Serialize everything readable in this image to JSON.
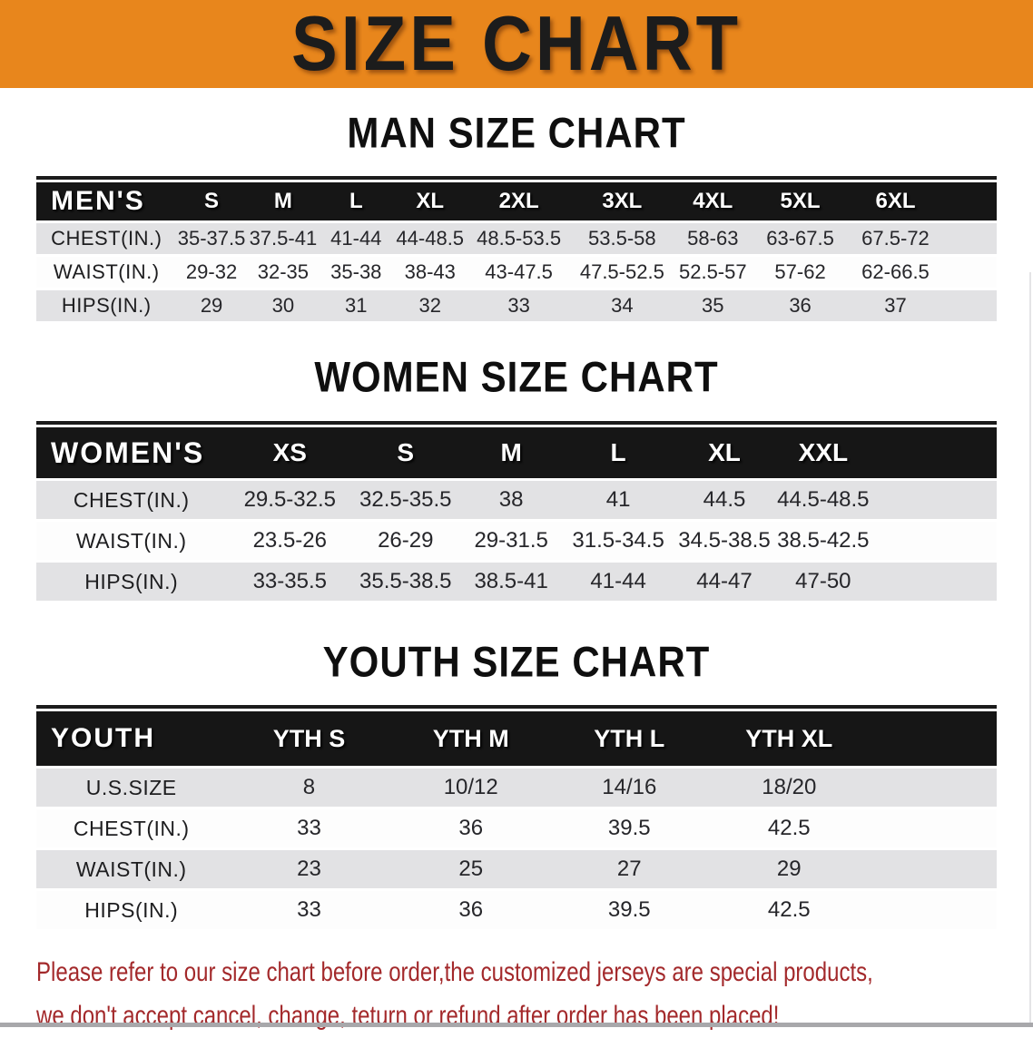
{
  "banner": {
    "title": "SIZE CHART"
  },
  "colors": {
    "banner_orange": "#E8861C",
    "header_black": "#161616",
    "row_gray": "#E2E2E4",
    "footer_red": "#A3292B"
  },
  "sections": [
    {
      "heading": "MAN SIZE CHART",
      "table": {
        "corner": "MEN'S",
        "sizes": [
          "S",
          "M",
          "L",
          "XL",
          "2XL",
          "3XL",
          "4XL",
          "5XL",
          "6XL"
        ],
        "rows": [
          {
            "label": "CHEST(IN.)",
            "values": [
              "35-37.5",
              "37.5-41",
              "41-44",
              "44-48.5",
              "48.5-53.5",
              "53.5-58",
              "58-63",
              "63-67.5",
              "67.5-72"
            ]
          },
          {
            "label": "WAIST(IN.)",
            "values": [
              "29-32",
              "32-35",
              "35-38",
              "38-43",
              "43-47.5",
              "47.5-52.5",
              "52.5-57",
              "57-62",
              "62-66.5"
            ]
          },
          {
            "label": "HIPS(IN.)",
            "values": [
              "29",
              "30",
              "31",
              "32",
              "33",
              "34",
              "35",
              "36",
              "37"
            ]
          }
        ]
      }
    },
    {
      "heading": "WOMEN SIZE CHART",
      "table": {
        "corner": "WOMEN'S",
        "sizes": [
          "XS",
          "S",
          "M",
          "L",
          "XL",
          "XXL"
        ],
        "rows": [
          {
            "label": "CHEST(IN.)",
            "values": [
              "29.5-32.5",
              "32.5-35.5",
              "38",
              "41",
              "44.5",
              "44.5-48.5"
            ]
          },
          {
            "label": "WAIST(IN.)",
            "values": [
              "23.5-26",
              "26-29",
              "29-31.5",
              "31.5-34.5",
              "34.5-38.5",
              "38.5-42.5"
            ]
          },
          {
            "label": "HIPS(IN.)",
            "values": [
              "33-35.5",
              "35.5-38.5",
              "38.5-41",
              "41-44",
              "44-47",
              "47-50"
            ]
          }
        ]
      }
    },
    {
      "heading": "YOUTH SIZE CHART",
      "table": {
        "corner": "YOUTH",
        "sizes": [
          "YTH S",
          "YTH M",
          "YTH L",
          "YTH XL"
        ],
        "rows": [
          {
            "label": "U.S.SIZE",
            "values": [
              "8",
              "10/12",
              "14/16",
              "18/20"
            ]
          },
          {
            "label": "CHEST(IN.)",
            "values": [
              "33",
              "36",
              "39.5",
              "42.5"
            ]
          },
          {
            "label": "WAIST(IN.)",
            "values": [
              "23",
              "25",
              "27",
              "29"
            ]
          },
          {
            "label": "HIPS(IN.)",
            "values": [
              "33",
              "36",
              "39.5",
              "42.5"
            ]
          }
        ]
      }
    }
  ],
  "footer": {
    "line1": "Please refer to our size chart before order,the customized jerseys are special products,",
    "line2": "we don't accept cancel, change, teturn or refund after order has been placed!"
  }
}
